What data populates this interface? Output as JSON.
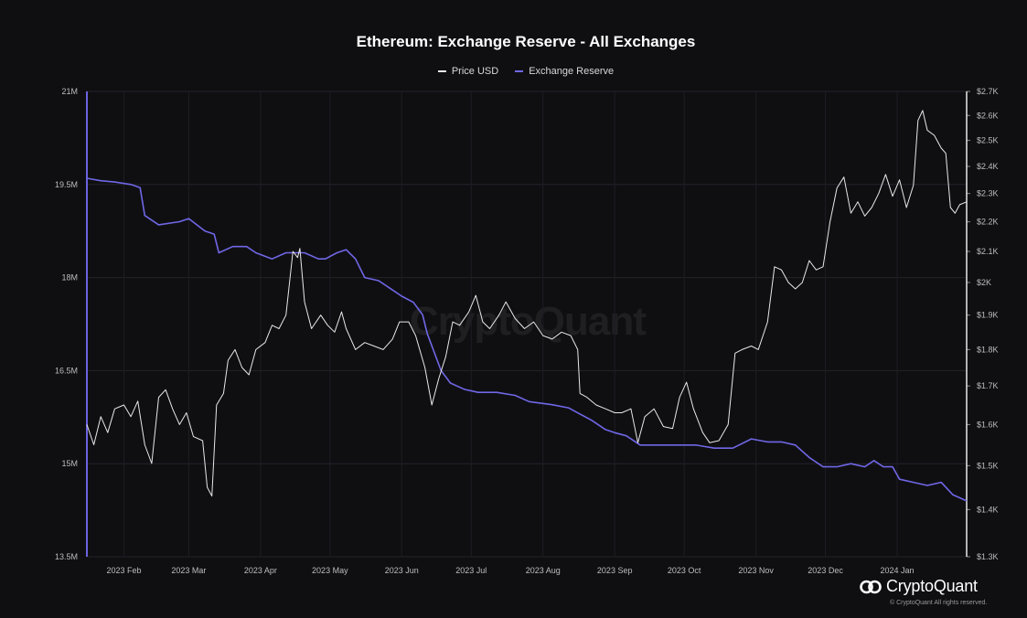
{
  "chart_data": {
    "type": "line",
    "title": "Ethereum: Exchange Reserve - All Exchanges",
    "legend": {
      "placement": "top-center",
      "items": [
        {
          "name": "Price USD",
          "color": "#e8e8e8"
        },
        {
          "name": "Exchange Reserve",
          "color": "#7067e6"
        }
      ]
    },
    "grid": true,
    "x_axis": {
      "range": [
        "2023-01-16",
        "2024-01-31"
      ],
      "tick_labels": [
        "2023 Feb",
        "2023 Mar",
        "2023 Apr",
        "2023 May",
        "2023 Jun",
        "2023 Jul",
        "2023 Aug",
        "2023 Sep",
        "2023 Oct",
        "2023 Nov",
        "2023 Dec",
        "2024 Jan"
      ],
      "tick_dates": [
        "2023-02-01",
        "2023-03-01",
        "2023-04-01",
        "2023-05-01",
        "2023-06-01",
        "2023-07-01",
        "2023-08-01",
        "2023-09-01",
        "2023-10-01",
        "2023-11-01",
        "2023-12-01",
        "2024-01-01"
      ]
    },
    "y_axis_left": {
      "range": [
        13500000,
        21000000
      ],
      "tick_values": [
        13500000,
        15000000,
        16500000,
        18000000,
        19500000,
        21000000
      ],
      "tick_labels": [
        "13.5M",
        "15M",
        "16.5M",
        "18M",
        "19.5M",
        "21M"
      ]
    },
    "y_axis_right": {
      "scale": "log",
      "range": [
        1300,
        2700
      ],
      "tick_values": [
        1300,
        1400,
        1500,
        1600,
        1700,
        1800,
        1900,
        2000,
        2100,
        2200,
        2300,
        2400,
        2500,
        2600,
        2700
      ],
      "tick_labels": [
        "$1.3K",
        "$1.4K",
        "$1.5K",
        "$1.6K",
        "$1.7K",
        "$1.8K",
        "$1.9K",
        "$2K",
        "$2.1K",
        "$2.2K",
        "$2.3K",
        "$2.4K",
        "$2.5K",
        "$2.6K",
        "$2.7K"
      ]
    },
    "series": [
      {
        "name": "Exchange Reserve",
        "axis": "left",
        "color": "#7067e6",
        "points": [
          [
            "2023-01-16",
            19600000
          ],
          [
            "2023-01-22",
            19560000
          ],
          [
            "2023-01-28",
            19540000
          ],
          [
            "2023-02-04",
            19500000
          ],
          [
            "2023-02-08",
            19450000
          ],
          [
            "2023-02-10",
            19000000
          ],
          [
            "2023-02-16",
            18850000
          ],
          [
            "2023-02-25",
            18900000
          ],
          [
            "2023-03-01",
            18950000
          ],
          [
            "2023-03-08",
            18750000
          ],
          [
            "2023-03-12",
            18700000
          ],
          [
            "2023-03-14",
            18400000
          ],
          [
            "2023-03-20",
            18500000
          ],
          [
            "2023-03-26",
            18500000
          ],
          [
            "2023-03-30",
            18400000
          ],
          [
            "2023-04-06",
            18300000
          ],
          [
            "2023-04-12",
            18400000
          ],
          [
            "2023-04-20",
            18400000
          ],
          [
            "2023-04-26",
            18300000
          ],
          [
            "2023-04-29",
            18300000
          ],
          [
            "2023-05-04",
            18400000
          ],
          [
            "2023-05-08",
            18450000
          ],
          [
            "2023-05-12",
            18300000
          ],
          [
            "2023-05-16",
            18000000
          ],
          [
            "2023-05-22",
            17950000
          ],
          [
            "2023-05-28",
            17800000
          ],
          [
            "2023-06-01",
            17700000
          ],
          [
            "2023-06-06",
            17600000
          ],
          [
            "2023-06-10",
            17400000
          ],
          [
            "2023-06-12",
            17100000
          ],
          [
            "2023-06-14",
            16900000
          ],
          [
            "2023-06-18",
            16500000
          ],
          [
            "2023-06-22",
            16300000
          ],
          [
            "2023-06-28",
            16200000
          ],
          [
            "2023-07-04",
            16150000
          ],
          [
            "2023-07-12",
            16150000
          ],
          [
            "2023-07-20",
            16100000
          ],
          [
            "2023-07-26",
            16000000
          ],
          [
            "2023-08-05",
            15950000
          ],
          [
            "2023-08-12",
            15900000
          ],
          [
            "2023-08-17",
            15800000
          ],
          [
            "2023-08-22",
            15700000
          ],
          [
            "2023-08-28",
            15550000
          ],
          [
            "2023-09-01",
            15500000
          ],
          [
            "2023-09-06",
            15450000
          ],
          [
            "2023-09-12",
            15300000
          ],
          [
            "2023-09-20",
            15300000
          ],
          [
            "2023-09-28",
            15300000
          ],
          [
            "2023-10-06",
            15300000
          ],
          [
            "2023-10-14",
            15250000
          ],
          [
            "2023-10-22",
            15250000
          ],
          [
            "2023-10-30",
            15400000
          ],
          [
            "2023-11-06",
            15350000
          ],
          [
            "2023-11-12",
            15350000
          ],
          [
            "2023-11-18",
            15300000
          ],
          [
            "2023-11-24",
            15100000
          ],
          [
            "2023-11-30",
            14950000
          ],
          [
            "2023-12-06",
            14950000
          ],
          [
            "2023-12-12",
            15000000
          ],
          [
            "2023-12-18",
            14950000
          ],
          [
            "2023-12-22",
            15050000
          ],
          [
            "2023-12-26",
            14950000
          ],
          [
            "2023-12-30",
            14950000
          ],
          [
            "2024-01-02",
            14750000
          ],
          [
            "2024-01-08",
            14700000
          ],
          [
            "2024-01-14",
            14650000
          ],
          [
            "2024-01-20",
            14700000
          ],
          [
            "2024-01-25",
            14500000
          ],
          [
            "2024-01-31",
            14400000
          ]
        ]
      },
      {
        "name": "Price USD",
        "axis": "right",
        "color": "#e8e8e8",
        "points": [
          [
            "2023-01-16",
            1600
          ],
          [
            "2023-01-19",
            1550
          ],
          [
            "2023-01-22",
            1620
          ],
          [
            "2023-01-25",
            1580
          ],
          [
            "2023-01-28",
            1640
          ],
          [
            "2023-02-01",
            1650
          ],
          [
            "2023-02-04",
            1620
          ],
          [
            "2023-02-07",
            1660
          ],
          [
            "2023-02-10",
            1550
          ],
          [
            "2023-02-13",
            1505
          ],
          [
            "2023-02-16",
            1670
          ],
          [
            "2023-02-19",
            1690
          ],
          [
            "2023-02-22",
            1640
          ],
          [
            "2023-02-25",
            1600
          ],
          [
            "2023-02-28",
            1630
          ],
          [
            "2023-03-03",
            1570
          ],
          [
            "2023-03-07",
            1560
          ],
          [
            "2023-03-09",
            1450
          ],
          [
            "2023-03-11",
            1430
          ],
          [
            "2023-03-13",
            1650
          ],
          [
            "2023-03-16",
            1680
          ],
          [
            "2023-03-18",
            1770
          ],
          [
            "2023-03-21",
            1800
          ],
          [
            "2023-03-24",
            1750
          ],
          [
            "2023-03-27",
            1730
          ],
          [
            "2023-03-30",
            1800
          ],
          [
            "2023-04-03",
            1820
          ],
          [
            "2023-04-06",
            1870
          ],
          [
            "2023-04-09",
            1860
          ],
          [
            "2023-04-12",
            1900
          ],
          [
            "2023-04-15",
            2100
          ],
          [
            "2023-04-17",
            2080
          ],
          [
            "2023-04-18",
            2110
          ],
          [
            "2023-04-20",
            1940
          ],
          [
            "2023-04-23",
            1860
          ],
          [
            "2023-04-27",
            1900
          ],
          [
            "2023-04-30",
            1870
          ],
          [
            "2023-05-03",
            1850
          ],
          [
            "2023-05-06",
            1910
          ],
          [
            "2023-05-08",
            1860
          ],
          [
            "2023-05-12",
            1800
          ],
          [
            "2023-05-16",
            1820
          ],
          [
            "2023-05-20",
            1810
          ],
          [
            "2023-05-24",
            1800
          ],
          [
            "2023-05-28",
            1830
          ],
          [
            "2023-05-31",
            1880
          ],
          [
            "2023-06-04",
            1880
          ],
          [
            "2023-06-07",
            1840
          ],
          [
            "2023-06-11",
            1750
          ],
          [
            "2023-06-14",
            1650
          ],
          [
            "2023-06-17",
            1720
          ],
          [
            "2023-06-20",
            1780
          ],
          [
            "2023-06-23",
            1880
          ],
          [
            "2023-06-26",
            1870
          ],
          [
            "2023-06-30",
            1910
          ],
          [
            "2023-07-03",
            1960
          ],
          [
            "2023-07-06",
            1880
          ],
          [
            "2023-07-09",
            1860
          ],
          [
            "2023-07-13",
            1900
          ],
          [
            "2023-07-16",
            1940
          ],
          [
            "2023-07-20",
            1890
          ],
          [
            "2023-07-24",
            1860
          ],
          [
            "2023-07-28",
            1880
          ],
          [
            "2023-08-01",
            1840
          ],
          [
            "2023-08-05",
            1830
          ],
          [
            "2023-08-09",
            1850
          ],
          [
            "2023-08-13",
            1840
          ],
          [
            "2023-08-16",
            1800
          ],
          [
            "2023-08-17",
            1680
          ],
          [
            "2023-08-20",
            1670
          ],
          [
            "2023-08-24",
            1650
          ],
          [
            "2023-08-28",
            1640
          ],
          [
            "2023-09-01",
            1630
          ],
          [
            "2023-09-04",
            1630
          ],
          [
            "2023-09-08",
            1640
          ],
          [
            "2023-09-11",
            1555
          ],
          [
            "2023-09-14",
            1620
          ],
          [
            "2023-09-18",
            1640
          ],
          [
            "2023-09-22",
            1595
          ],
          [
            "2023-09-26",
            1590
          ],
          [
            "2023-09-29",
            1670
          ],
          [
            "2023-10-02",
            1710
          ],
          [
            "2023-10-05",
            1640
          ],
          [
            "2023-10-09",
            1580
          ],
          [
            "2023-10-12",
            1555
          ],
          [
            "2023-10-16",
            1560
          ],
          [
            "2023-10-20",
            1600
          ],
          [
            "2023-10-23",
            1790
          ],
          [
            "2023-10-26",
            1800
          ],
          [
            "2023-10-30",
            1810
          ],
          [
            "2023-11-02",
            1800
          ],
          [
            "2023-11-06",
            1880
          ],
          [
            "2023-11-09",
            2050
          ],
          [
            "2023-11-12",
            2040
          ],
          [
            "2023-11-15",
            2000
          ],
          [
            "2023-11-18",
            1980
          ],
          [
            "2023-11-21",
            2000
          ],
          [
            "2023-11-24",
            2070
          ],
          [
            "2023-11-27",
            2040
          ],
          [
            "2023-11-30",
            2050
          ],
          [
            "2023-12-03",
            2200
          ],
          [
            "2023-12-06",
            2320
          ],
          [
            "2023-12-09",
            2360
          ],
          [
            "2023-12-12",
            2230
          ],
          [
            "2023-12-15",
            2270
          ],
          [
            "2023-12-18",
            2220
          ],
          [
            "2023-12-21",
            2250
          ],
          [
            "2023-12-24",
            2300
          ],
          [
            "2023-12-27",
            2370
          ],
          [
            "2023-12-30",
            2290
          ],
          [
            "2024-01-02",
            2350
          ],
          [
            "2024-01-05",
            2250
          ],
          [
            "2024-01-08",
            2330
          ],
          [
            "2024-01-10",
            2580
          ],
          [
            "2024-01-12",
            2620
          ],
          [
            "2024-01-14",
            2540
          ],
          [
            "2024-01-17",
            2520
          ],
          [
            "2024-01-20",
            2470
          ],
          [
            "2024-01-22",
            2450
          ],
          [
            "2024-01-24",
            2250
          ],
          [
            "2024-01-26",
            2230
          ],
          [
            "2024-01-28",
            2260
          ],
          [
            "2024-01-31",
            2270
          ]
        ]
      }
    ]
  },
  "watermark": "CryptoQuant",
  "brand": {
    "name": "CryptoQuant",
    "copyright": "© CryptoQuant All rights reserved."
  }
}
